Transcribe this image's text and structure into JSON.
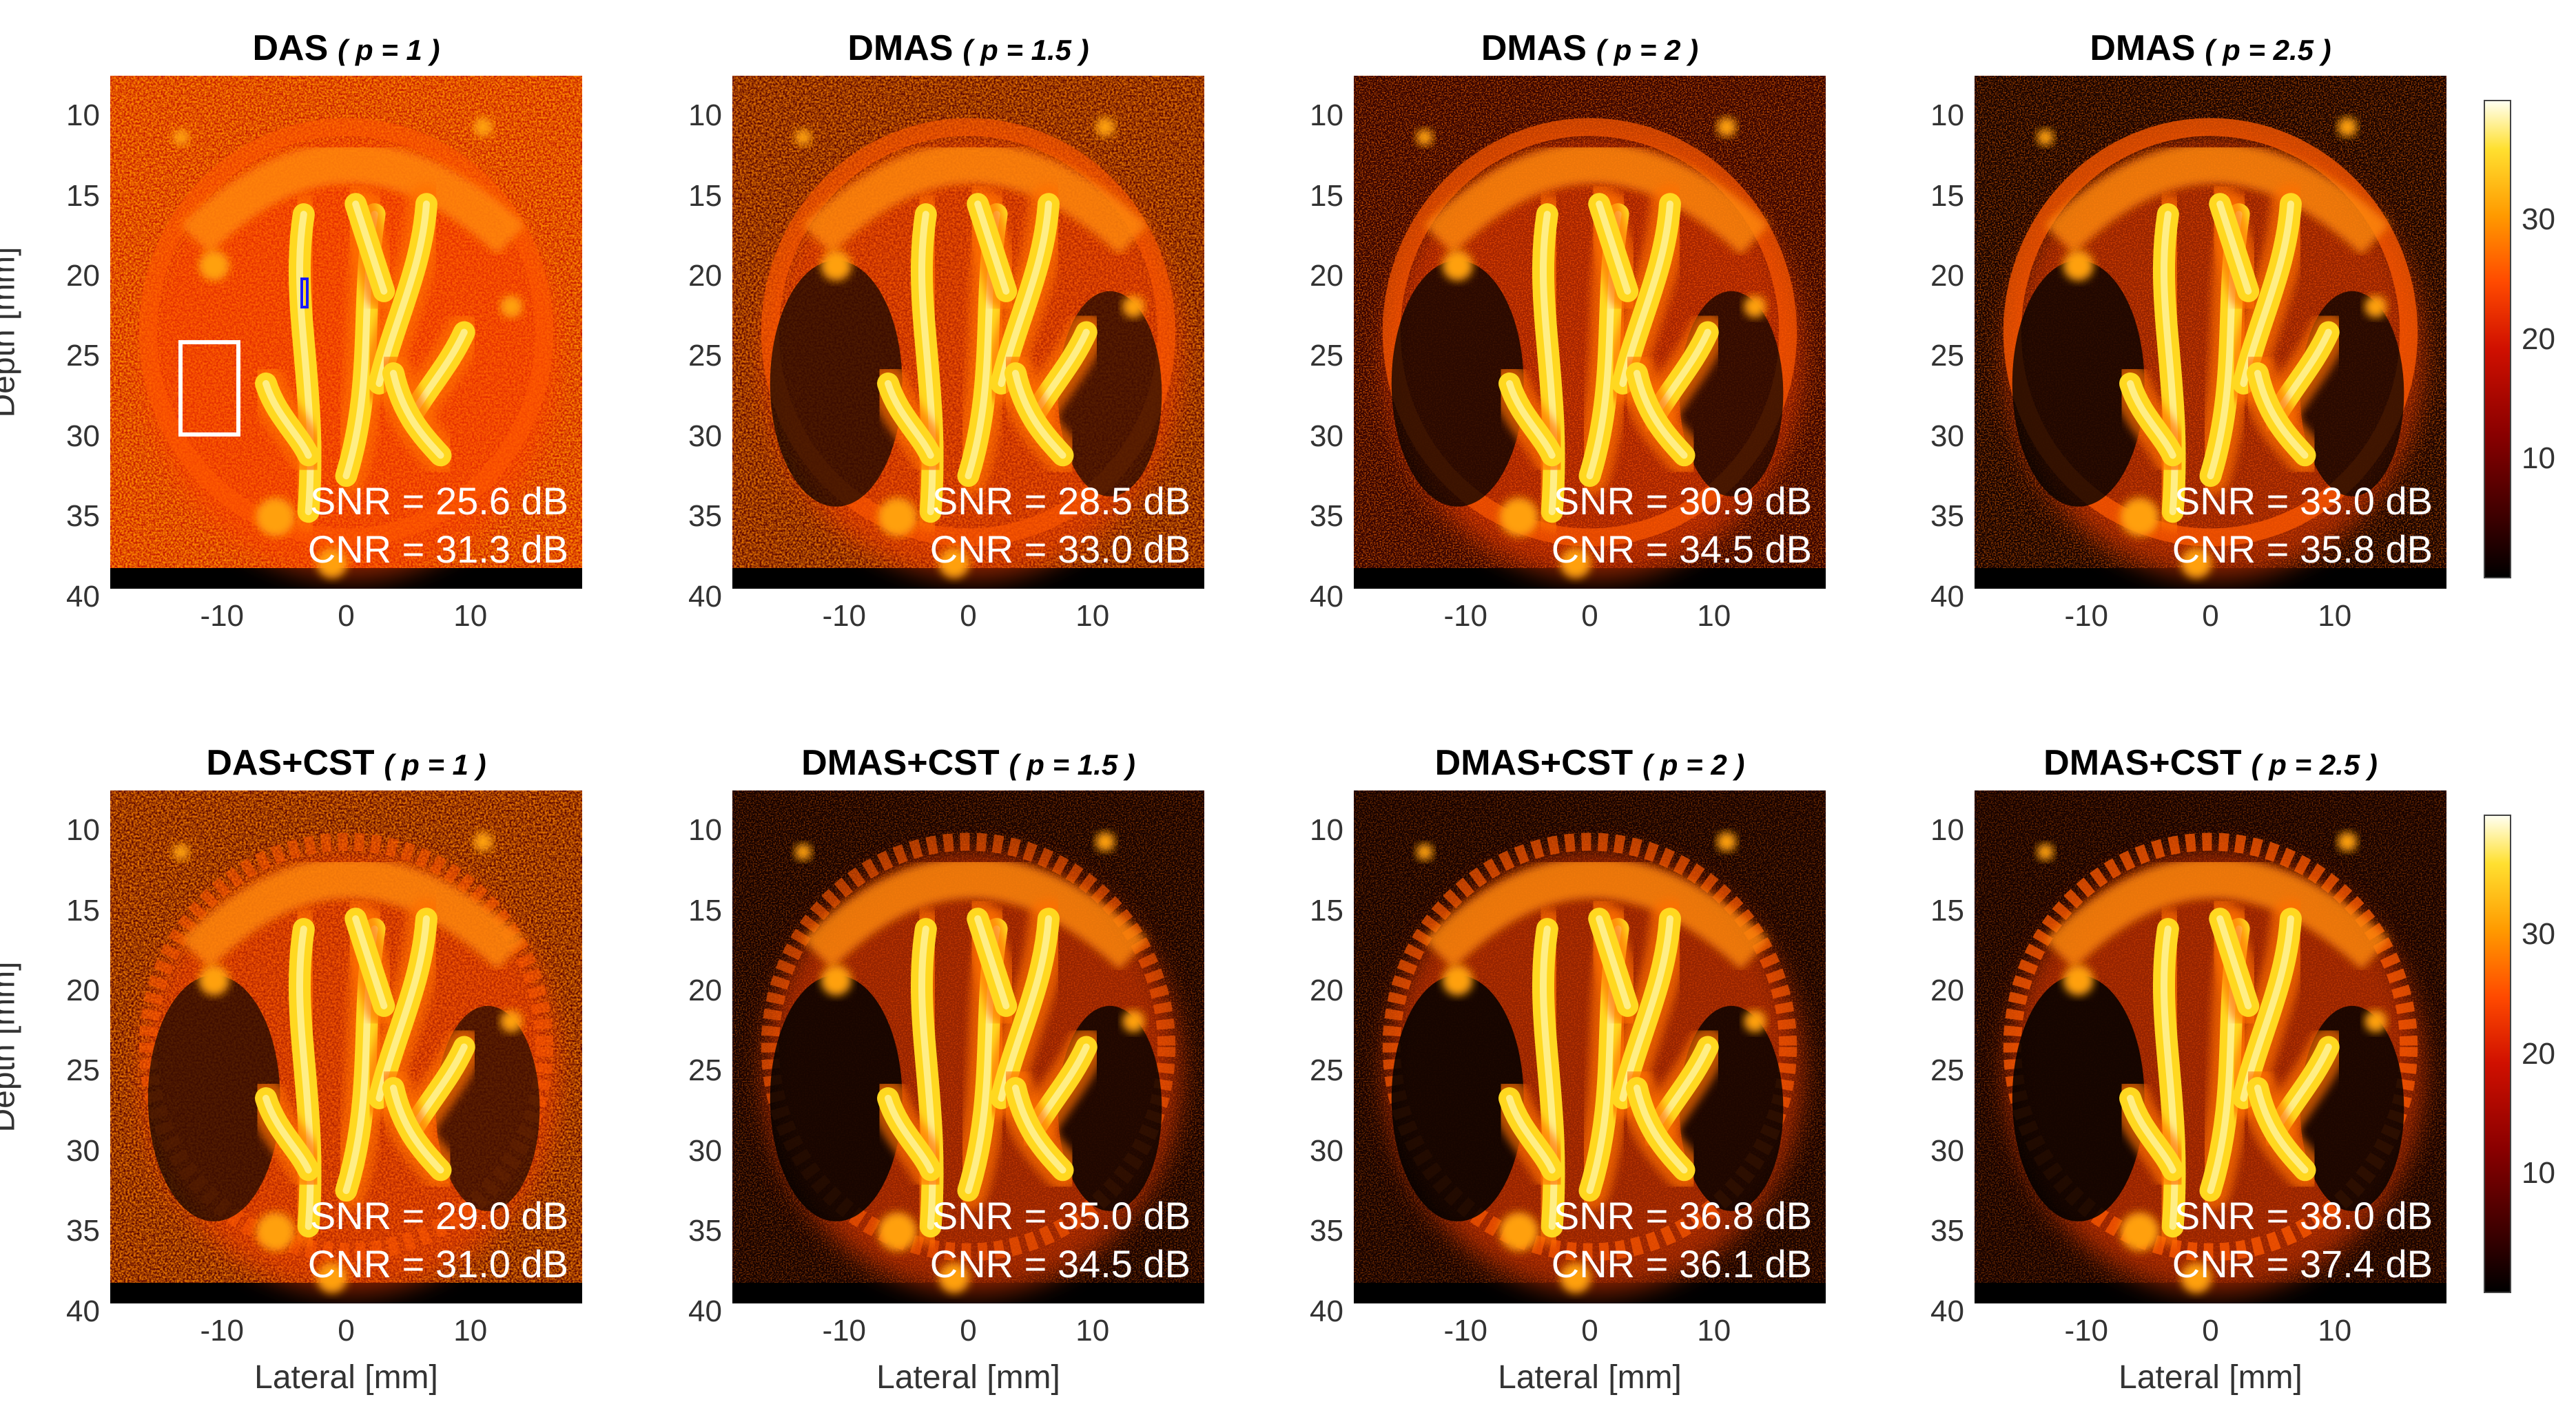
{
  "figure": {
    "panels": [
      {
        "title": "DAS",
        "param": "( p = 1 )",
        "snr": "SNR = 25.6 dB",
        "cnr": "CNR = 31.3 dB"
      },
      {
        "title": "DMAS",
        "param": "( p = 1.5 )",
        "snr": "SNR = 28.5 dB",
        "cnr": "CNR = 33.0 dB"
      },
      {
        "title": "DMAS",
        "param": "( p = 2 )",
        "snr": "SNR = 30.9 dB",
        "cnr": "CNR = 34.5 dB"
      },
      {
        "title": "DMAS",
        "param": "( p = 2.5 )",
        "snr": "SNR = 33.0 dB",
        "cnr": "CNR = 35.8 dB"
      },
      {
        "title": "DAS+CST",
        "param": "( p = 1 )",
        "snr": "SNR = 29.0 dB",
        "cnr": "CNR = 31.0 dB"
      },
      {
        "title": "DMAS+CST",
        "param": "( p = 1.5 )",
        "snr": "SNR = 35.0 dB",
        "cnr": "CNR = 34.5 dB"
      },
      {
        "title": "DMAS+CST",
        "param": "( p = 2 )",
        "snr": "SNR = 36.8 dB",
        "cnr": "CNR = 36.1 dB"
      },
      {
        "title": "DMAS+CST",
        "param": "( p = 2.5 )",
        "snr": "SNR = 38.0 dB",
        "cnr": "CNR = 37.4 dB"
      }
    ],
    "y_ticks": [
      "10",
      "15",
      "20",
      "25",
      "30",
      "35",
      "40"
    ],
    "x_ticks": [
      "-10",
      "0",
      "10"
    ],
    "ylabel": "Depth [mm]",
    "xlabel": "Lateral [mm]",
    "colorbar_ticks": [
      "30",
      "20",
      "10"
    ],
    "colormap": "hot",
    "colors": {
      "signal_bright": "#ffe030",
      "background": "#000000",
      "roi_background": "#ffffff",
      "roi_vessel": "#1a1aff"
    }
  }
}
